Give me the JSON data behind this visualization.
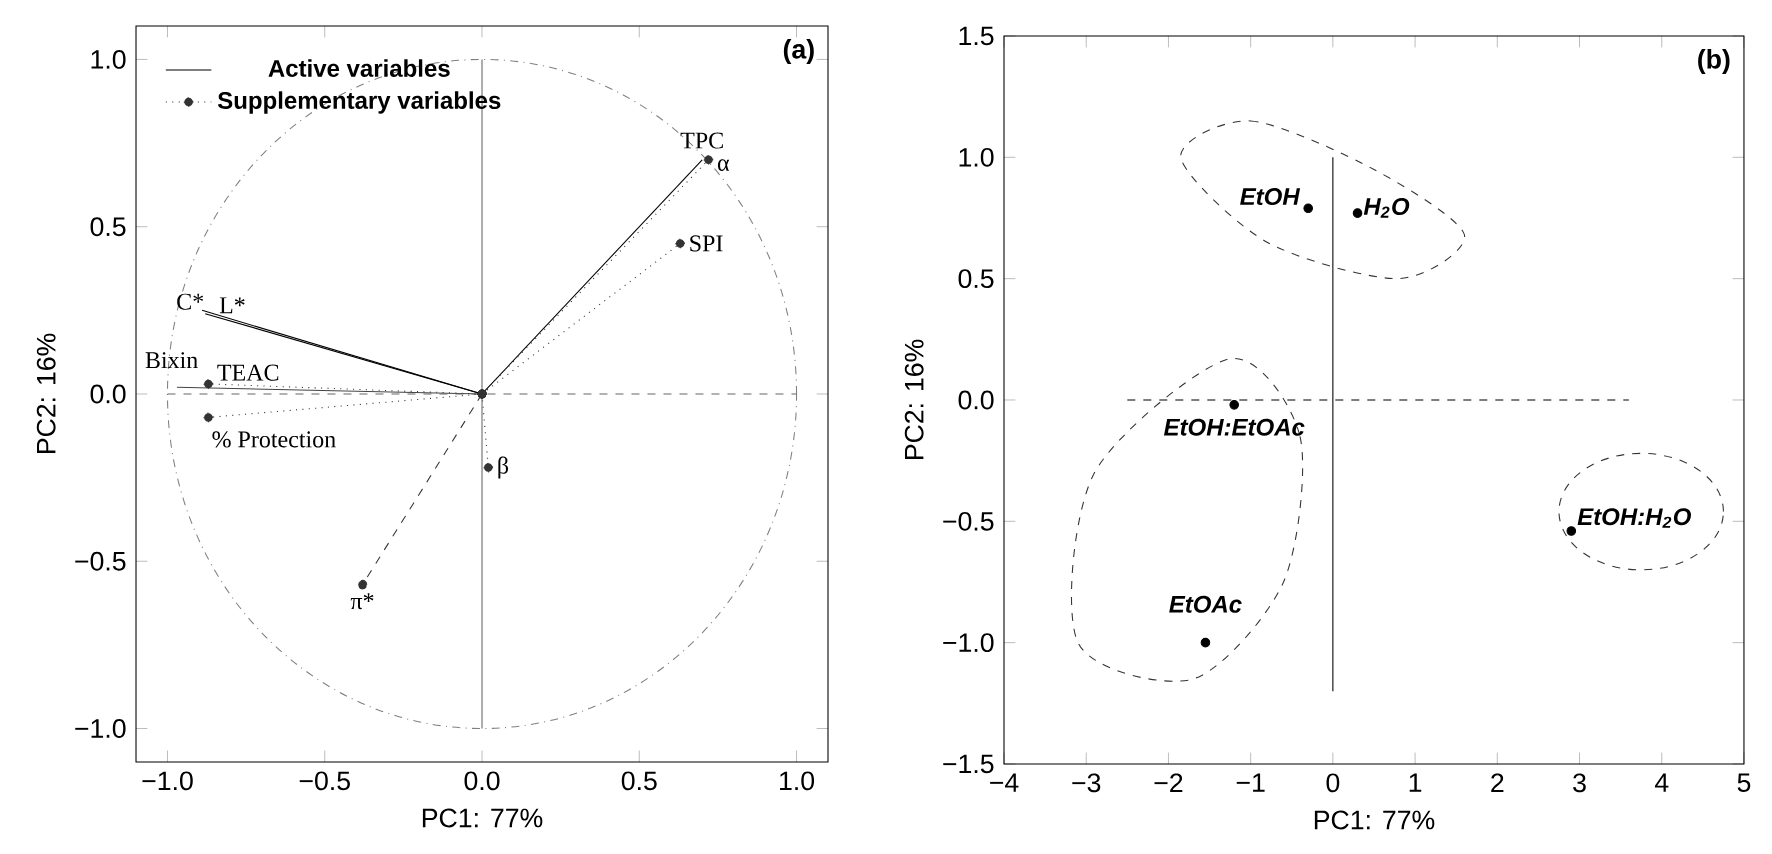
{
  "chart_data": [
    {
      "type": "line",
      "xlabel": "PC1: 77%",
      "ylabel": "PC2: 16%",
      "legend": "top left",
      "xlim": [
        -1.1,
        1.1
      ],
      "ylim": [
        -1.1,
        1.1
      ],
      "xticks": [
        {
          "value": -1,
          "label": "−1.0"
        },
        {
          "value": -0.5,
          "label": "−0.5"
        },
        {
          "value": 0,
          "label": "0.0"
        },
        {
          "value": 0.5,
          "label": "0.5"
        },
        {
          "value": 1,
          "label": "1.0"
        }
      ],
      "yticks": [
        {
          "value": -1,
          "label": "−1.0"
        },
        {
          "value": -0.5,
          "label": "−0.5"
        },
        {
          "value": 0,
          "label": "0.0"
        },
        {
          "value": 0.5,
          "label": "0.5"
        },
        {
          "value": 1,
          "label": "1.0"
        }
      ],
      "series": [
        {
          "name": "Active variables",
          "color": "#000000",
          "line_style": "solid",
          "x": [
            0,
            -0.89
          ],
          "values": [
            0,
            0.25
          ]
        },
        {
          "name": "Supplementary variables",
          "color": "#333333",
          "line_style": "dotted",
          "marker": "circle",
          "x": [
            0,
            0.63
          ],
          "values": [
            0,
            0.45
          ]
        },
        {
          "color": "#000000",
          "line_style": "solid",
          "x": [
            0,
            -0.88
          ],
          "values": [
            0,
            0.24
          ]
        },
        {
          "color": "#444444",
          "line_style": "solid",
          "x": [
            0,
            -0.97
          ],
          "values": [
            0,
            0.02
          ]
        },
        {
          "color": "#000000",
          "line_style": "solid",
          "x": [
            0,
            0.7
          ],
          "values": [
            0,
            0.7
          ]
        },
        {
          "color": "#333333",
          "line_style": "dotted",
          "marker": "circle",
          "x": [
            0,
            -0.87
          ],
          "values": [
            0,
            0.03
          ]
        },
        {
          "color": "#333333",
          "line_style": "dotted",
          "marker": "circle",
          "x": [
            0,
            -0.87
          ],
          "values": [
            0,
            -0.07
          ]
        },
        {
          "color": "#333333",
          "line_style": "dotted",
          "marker": "circle",
          "x": [
            0,
            0.72
          ],
          "values": [
            0,
            0.7
          ]
        },
        {
          "color": "#333333",
          "line_style": "dotted",
          "marker": "circle",
          "x": [
            0,
            0.02
          ],
          "values": [
            0,
            -0.22
          ]
        },
        {
          "color": "#333333",
          "line_style": "dashed",
          "marker": "circle",
          "x": [
            0,
            -0.38
          ],
          "values": [
            0,
            -0.57
          ]
        },
        {
          "color": "#666666",
          "line_style": "solid",
          "x": [
            0,
            0
          ],
          "values": [
            -1,
            1
          ]
        },
        {
          "color": "#666666",
          "line_style": "dashed",
          "x": [
            -1,
            1
          ],
          "values": [
            0,
            0
          ]
        }
      ],
      "annotations": [
        "(a)",
        {
          "text": "TPC",
          "x": 0.7,
          "y": 0.7
        },
        {
          "text": "α",
          "x": 0.72,
          "y": 0.7
        },
        {
          "text": "SPI",
          "x": 0.63,
          "y": 0.45
        },
        {
          "text": "C*",
          "x": -0.89,
          "y": 0.25
        },
        {
          "text": "L*",
          "x": -0.88,
          "y": 0.24
        },
        {
          "text": "Bixin",
          "x": -0.97,
          "y": 0.02
        },
        {
          "text": "TEAC",
          "x": -0.87,
          "y": 0.03
        },
        {
          "text": "% Protection",
          "x": -0.87,
          "y": -0.07
        },
        {
          "text": "β",
          "x": 0.02,
          "y": -0.22
        },
        {
          "text": "π*",
          "x": -0.38,
          "y": -0.57
        }
      ]
    },
    {
      "type": "scatter",
      "xlabel": "PC1: 77%",
      "ylabel": "PC2: 16%",
      "xlim": [
        -4,
        5
      ],
      "ylim": [
        -1.5,
        1.5
      ],
      "xticks": [
        {
          "value": -4,
          "label": "−4"
        },
        {
          "value": -3,
          "label": "−3"
        },
        {
          "value": -2,
          "label": "−2"
        },
        {
          "value": -1,
          "label": "−1"
        },
        0,
        1,
        2,
        3,
        4,
        5
      ],
      "yticks": [
        {
          "value": -1.5,
          "label": "−1.5"
        },
        {
          "value": -1,
          "label": "−1.0"
        },
        {
          "value": -0.5,
          "label": "−0.5"
        },
        {
          "value": 0,
          "label": "0.0"
        },
        {
          "value": 0.5,
          "label": "0.5"
        },
        {
          "value": 1,
          "label": "1.0"
        },
        {
          "value": 1.5,
          "label": "1.5"
        }
      ],
      "series": [
        {
          "color": "#000000",
          "marker": "circle",
          "x": [
            -0.3,
            0.3,
            -1.2,
            -1.55,
            2.9
          ],
          "values": [
            0.79,
            0.77,
            -0.02,
            -1.0,
            -0.54
          ]
        },
        {
          "type": "line",
          "color": "#000000",
          "line_style": "solid",
          "x": [
            0,
            0
          ],
          "values": [
            -1.2,
            1.0
          ]
        },
        {
          "type": "line",
          "color": "#000000",
          "line_style": "dashed",
          "x": [
            -2.5,
            3.6
          ],
          "values": [
            0,
            0
          ]
        }
      ],
      "annotations": [
        "(b)",
        {
          "text": "EtOH",
          "x": -0.3,
          "y": 0.79
        },
        {
          "text": "H$_{2}$O",
          "x": 0.3,
          "y": 0.77
        },
        {
          "text": "EtOH:EtOAc",
          "x": -1.2,
          "y": -0.02
        },
        {
          "text": "EtOAc",
          "x": -1.55,
          "y": -1.0
        },
        {
          "text": "EtOH:H$_{2}$O",
          "x": 2.9,
          "y": -0.54
        }
      ]
    }
  ]
}
